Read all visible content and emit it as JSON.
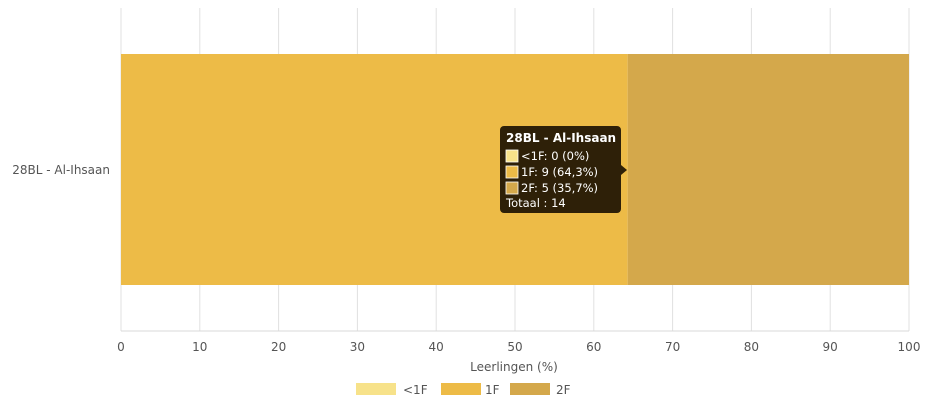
{
  "chart_data": {
    "type": "bar",
    "orientation": "horizontal",
    "stacked": true,
    "categories": [
      "28BL - Al-Ihsaan"
    ],
    "series": [
      {
        "name": "<1F",
        "values": [
          0
        ],
        "color": "#F7E28A"
      },
      {
        "name": "1F",
        "values": [
          64.3
        ],
        "color": "#EDBB47"
      },
      {
        "name": "2F",
        "values": [
          35.7
        ],
        "color": "#D4A84B"
      }
    ],
    "xlabel": "Leerlingen (%)",
    "xlim": [
      0,
      100
    ],
    "xticks": [
      0,
      10,
      20,
      30,
      40,
      50,
      60,
      70,
      80,
      90,
      100
    ],
    "grid": true,
    "legend_position": "bottom",
    "tooltip": {
      "title": "28BL - Al-Ihsaan",
      "lines": [
        "<1F: 0 (0%)",
        "1F: 9 (64,3%)",
        "2F: 5 (35,7%)"
      ],
      "total": "Totaal : 14",
      "background": "#2E2008"
    }
  }
}
